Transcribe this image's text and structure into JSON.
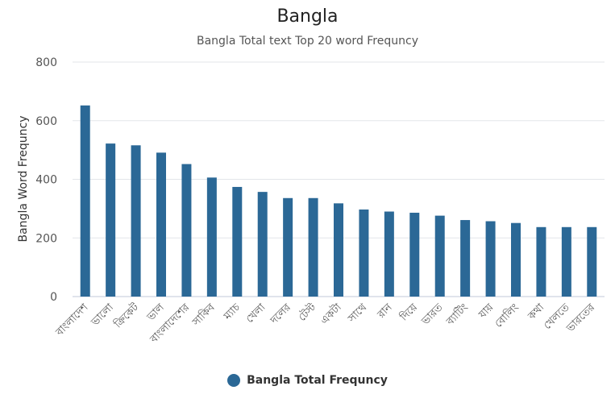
{
  "chart_data": {
    "type": "bar",
    "title": "Bangla",
    "subtitle": "Bangla Total text Top 20 word Frequncy",
    "xlabel": "",
    "ylabel": "Bangla Word Frequncy",
    "ylim": [
      0,
      800
    ],
    "yticks": [
      0,
      200,
      400,
      600,
      800
    ],
    "grid": true,
    "legend_position": "bottom",
    "categories": [
      "বাংলাদেশ",
      "ভালো",
      "ক্রিকেট",
      "ভাল",
      "বাংলাদেশের",
      "সাকিব",
      "ম্যাচ",
      "খেলা",
      "দলের",
      "টেস্ট",
      "একটা",
      "সাথে",
      "রান",
      "দিয়ে",
      "ভারত",
      "ব্যাটিং",
      "যায়",
      "বোলিং",
      "কথা",
      "খেলতে",
      "ভারতের"
    ],
    "series": [
      {
        "name": "Bangla Total Frequncy",
        "color": "#2b6896",
        "values": [
          652,
          522,
          516,
          491,
          452,
          406,
          374,
          357,
          336,
          336,
          318,
          297,
          290,
          286,
          276,
          261,
          257,
          251,
          237,
          237,
          237
        ]
      }
    ]
  }
}
